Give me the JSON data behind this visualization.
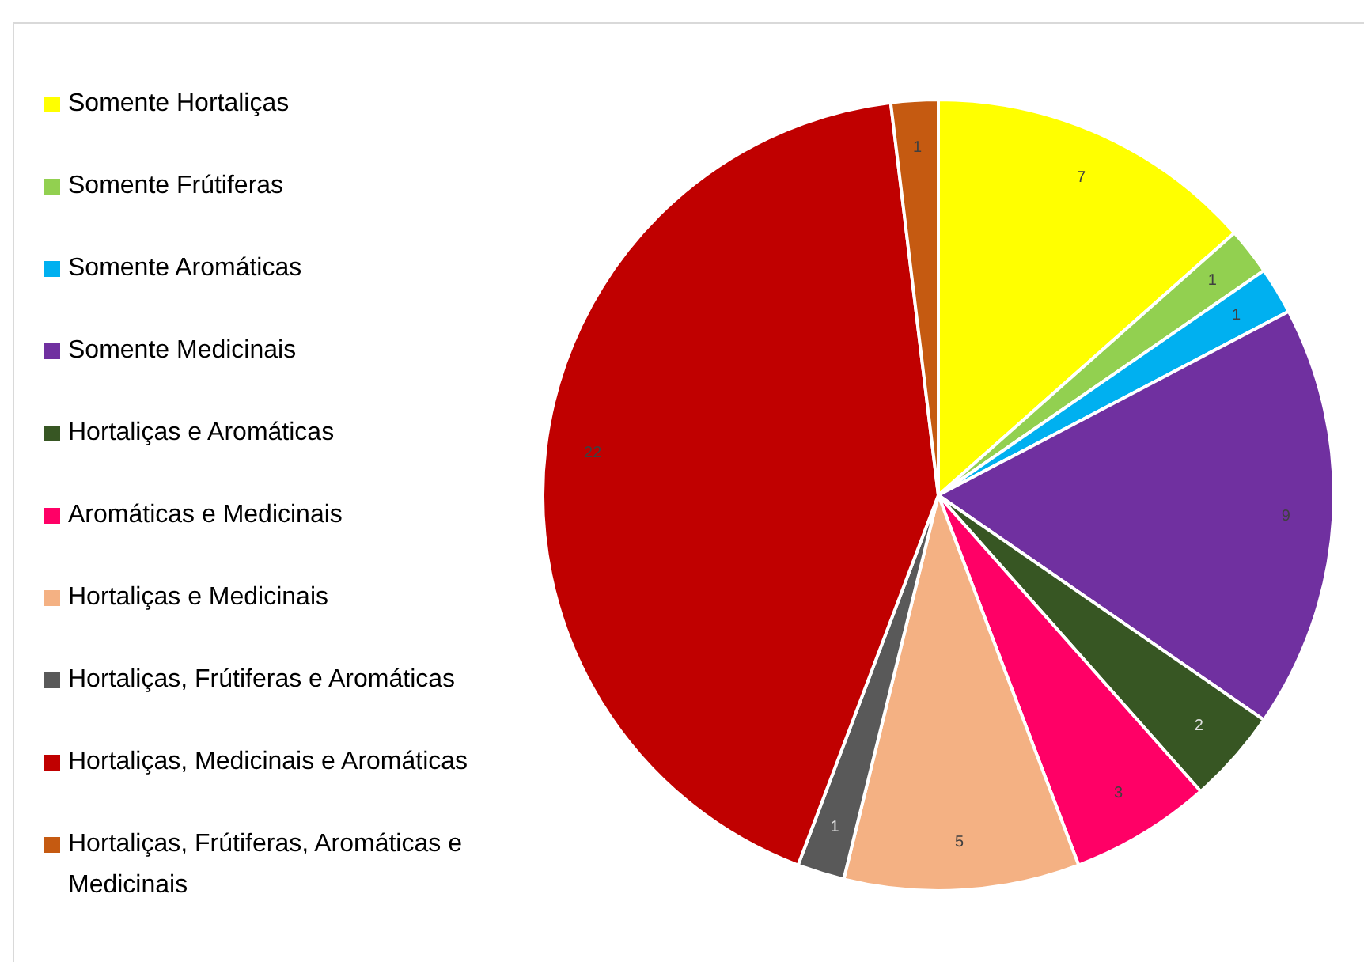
{
  "chart_data": {
    "type": "pie",
    "categories": [
      "Somente Hortaliças",
      "Somente Frútiferas",
      "Somente Aromáticas",
      "Somente Medicinais",
      "Hortaliças e Aromáticas",
      "Aromáticas e Medicinais",
      "Hortaliças e Medicinais",
      "Hortaliças, Frútiferas e Aromáticas",
      "Hortaliças, Medicinais e Aromáticas",
      "Hortaliças, Frútiferas, Aromáticas e Medicinais"
    ],
    "values": [
      7,
      1,
      1,
      9,
      2,
      3,
      5,
      1,
      22,
      1
    ],
    "colors": [
      "#ffff00",
      "#92d050",
      "#00b0f0",
      "#7030a0",
      "#375623",
      "#ff0066",
      "#f4b183",
      "#595959",
      "#c00000",
      "#c55a11"
    ],
    "data_labels": true,
    "legend": "left"
  }
}
